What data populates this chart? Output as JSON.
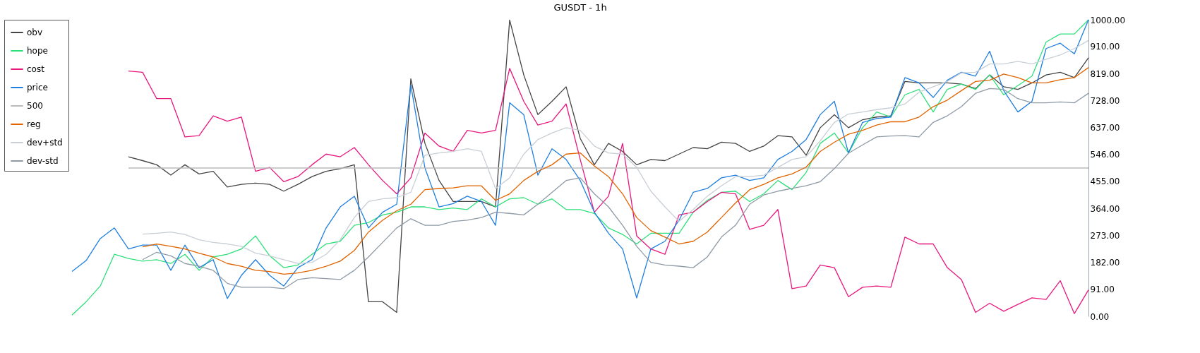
{
  "chart_data": {
    "type": "line",
    "title": "GUSDT - 1h",
    "categories": [
      null,
      null,
      null,
      null,
      null,
      null,
      null,
      null,
      null,
      null,
      null,
      null,
      null,
      null,
      null,
      null,
      null,
      null,
      null,
      null,
      null,
      null,
      null,
      null,
      null,
      null,
      null,
      null,
      null,
      null,
      null,
      null,
      null,
      null,
      null,
      null,
      null,
      null,
      null,
      null,
      null,
      null,
      null,
      null,
      null,
      null,
      null,
      null,
      null,
      null,
      null,
      null,
      null,
      null,
      null,
      null,
      null,
      null,
      null,
      null,
      null,
      null,
      null,
      null,
      null,
      null,
      null,
      null,
      null,
      null,
      null,
      null,
      null
    ],
    "series": [
      {
        "name": "obv",
        "color": "#444444",
        "values": [
          null,
          null,
          null,
          null,
          538,
          525,
          511,
          476,
          511,
          480,
          489,
          436,
          445,
          449,
          445,
          422,
          445,
          471,
          489,
          498,
          511,
          49,
          49,
          13,
          801,
          583,
          458,
          387,
          387,
          387,
          369,
          999,
          814,
          680,
          725,
          774,
          600,
          511,
          583,
          556,
          511,
          529,
          525,
          547,
          569,
          565,
          587,
          583,
          556,
          574,
          609,
          605,
          543,
          636,
          680,
          636,
          663,
          672,
          676,
          792,
          787,
          787,
          787,
          783,
          768,
          814,
          774,
          765,
          787,
          814,
          823,
          805,
          872
        ]
      },
      {
        "name": "hope",
        "color": "#2ee07a",
        "values": [
          4,
          49,
          102,
          209,
          195,
          186,
          191,
          178,
          209,
          155,
          200,
          209,
          227,
          271,
          204,
          164,
          173,
          209,
          244,
          253,
          307,
          316,
          342,
          351,
          369,
          369,
          360,
          365,
          360,
          396,
          369,
          396,
          400,
          378,
          396,
          360,
          360,
          347,
          298,
          276,
          244,
          280,
          280,
          280,
          351,
          391,
          418,
          422,
          387,
          413,
          458,
          427,
          485,
          583,
          618,
          551,
          636,
          689,
          672,
          747,
          765,
          689,
          765,
          783,
          765,
          814,
          747,
          778,
          810,
          925,
          952,
          952,
          1000
        ]
      },
      {
        "name": "cost",
        "color": "#e8177e",
        "values": [
          null,
          null,
          null,
          null,
          827,
          823,
          734,
          734,
          605,
          609,
          676,
          658,
          672,
          489,
          502,
          454,
          471,
          511,
          547,
          538,
          569,
          511,
          458,
          413,
          467,
          618,
          574,
          556,
          627,
          618,
          627,
          836,
          725,
          645,
          658,
          716,
          529,
          351,
          405,
          583,
          271,
          227,
          209,
          342,
          351,
          387,
          418,
          413,
          293,
          307,
          360,
          93,
          102,
          173,
          164,
          66,
          98,
          102,
          98,
          267,
          244,
          244,
          164,
          124,
          13,
          44,
          17,
          40,
          62,
          57,
          120,
          9,
          89
        ]
      },
      {
        "name": "price",
        "color": "#1e7fe0",
        "values": [
          151,
          188,
          262,
          298,
          227,
          240,
          240,
          155,
          240,
          164,
          191,
          60,
          138,
          191,
          138,
          102,
          164,
          191,
          298,
          369,
          405,
          298,
          351,
          378,
          780,
          500,
          369,
          380,
          405,
          387,
          307,
          720,
          680,
          476,
          565,
          529,
          458,
          351,
          280,
          227,
          62,
          227,
          253,
          324,
          418,
          431,
          467,
          476,
          458,
          467,
          529,
          556,
          596,
          680,
          725,
          551,
          654,
          667,
          672,
          805,
          787,
          738,
          796,
          823,
          810,
          894,
          761,
          689,
          725,
          903,
          921,
          885,
          1000
        ]
      },
      {
        "name": "500",
        "color": "#bbbbbb",
        "values": [
          null,
          null,
          null,
          null,
          500,
          500,
          500,
          500,
          500,
          500,
          500,
          500,
          500,
          500,
          500,
          500,
          500,
          500,
          500,
          500,
          500,
          500,
          500,
          500,
          500,
          500,
          500,
          500,
          500,
          500,
          500,
          500,
          500,
          500,
          500,
          500,
          500,
          500,
          500,
          500,
          500,
          500,
          500,
          500,
          500,
          500,
          500,
          500,
          500,
          500,
          500,
          500,
          500,
          500,
          500,
          500,
          500,
          500,
          500,
          500,
          500,
          500,
          500,
          500,
          500,
          500,
          500,
          500,
          500,
          500,
          500,
          500,
          500
        ]
      },
      {
        "name": "reg",
        "color": "#e06400",
        "values": [
          null,
          null,
          null,
          null,
          null,
          234,
          244,
          236,
          227,
          213,
          200,
          178,
          169,
          155,
          151,
          142,
          146,
          155,
          169,
          186,
          222,
          284,
          324,
          356,
          378,
          427,
          431,
          433,
          440,
          440,
          391,
          413,
          458,
          489,
          511,
          547,
          551,
          507,
          471,
          413,
          333,
          289,
          267,
          244,
          253,
          284,
          333,
          382,
          427,
          445,
          467,
          480,
          503,
          556,
          587,
          614,
          627,
          645,
          656,
          656,
          672,
          707,
          729,
          761,
          792,
          796,
          817,
          805,
          787,
          787,
          798,
          805,
          839
        ]
      },
      {
        "name": "dev+std",
        "color": "#c8cfd6",
        "values": [
          null,
          null,
          null,
          null,
          null,
          277,
          280,
          284,
          276,
          258,
          249,
          244,
          236,
          213,
          204,
          191,
          178,
          182,
          209,
          258,
          333,
          387,
          396,
          400,
          418,
          543,
          551,
          556,
          565,
          556,
          431,
          467,
          547,
          596,
          618,
          636,
          627,
          574,
          551,
          547,
          502,
          422,
          369,
          320,
          360,
          405,
          440,
          471,
          471,
          476,
          502,
          529,
          538,
          592,
          654,
          682,
          689,
          697,
          703,
          716,
          756,
          774,
          792,
          821,
          823,
          851,
          851,
          860,
          851,
          867,
          881,
          903,
          930
        ]
      },
      {
        "name": "dev-std",
        "color": "#8e9aa6",
        "values": [
          null,
          null,
          null,
          null,
          null,
          191,
          216,
          204,
          178,
          169,
          155,
          111,
          98,
          98,
          98,
          93,
          124,
          130,
          127,
          124,
          155,
          200,
          249,
          298,
          329,
          307,
          307,
          320,
          324,
          333,
          351,
          347,
          342,
          378,
          418,
          458,
          467,
          413,
          369,
          307,
          236,
          182,
          173,
          169,
          164,
          200,
          267,
          307,
          378,
          409,
          422,
          431,
          440,
          454,
          498,
          550,
          578,
          605,
          608,
          609,
          605,
          654,
          676,
          707,
          752,
          768,
          765,
          734,
          720,
          720,
          723,
          720,
          752
        ]
      }
    ],
    "ylim": [
      0,
      1000
    ],
    "yticks": [
      {
        "value": 0,
        "label": "0.00"
      },
      {
        "value": 91,
        "label": "91.00"
      },
      {
        "value": 182,
        "label": "182.00"
      },
      {
        "value": 273,
        "label": "273.00"
      },
      {
        "value": 364,
        "label": "364.00"
      },
      {
        "value": 455,
        "label": "455.00"
      },
      {
        "value": 546,
        "label": "546.00"
      },
      {
        "value": 637,
        "label": "637.00"
      },
      {
        "value": 728,
        "label": "728.00"
      },
      {
        "value": 819,
        "label": "819.00"
      },
      {
        "value": 910,
        "label": "910.00"
      },
      {
        "value": 1000,
        "label": "1000.00"
      }
    ],
    "tick_labels": "y",
    "grid": false,
    "legend": "top left",
    "marker": "none",
    "line_style": "solid"
  }
}
